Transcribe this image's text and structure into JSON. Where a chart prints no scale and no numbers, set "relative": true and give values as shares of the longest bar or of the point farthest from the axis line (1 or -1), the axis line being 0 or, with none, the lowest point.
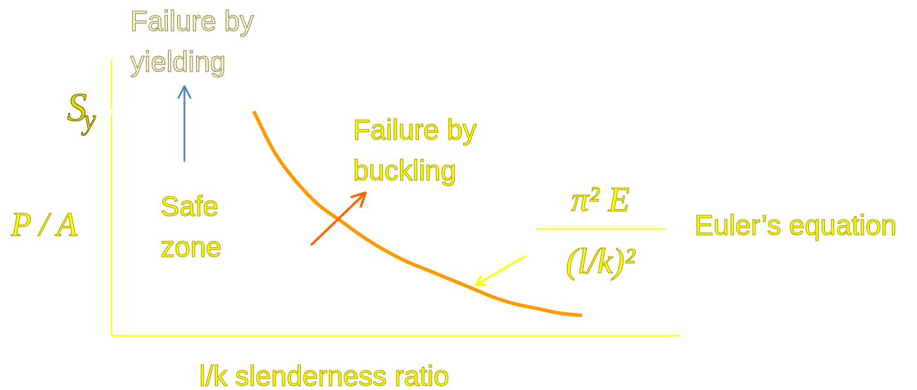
{
  "chart_data": {
    "type": "line",
    "relative": true,
    "xlabel": "l/k slenderness ratio",
    "ylabel": "P / A",
    "categories": [
      null,
      null,
      null,
      null,
      null,
      null,
      null,
      null,
      null,
      null,
      null,
      null,
      null,
      null,
      null,
      null,
      null,
      null,
      null,
      null,
      null,
      null,
      null,
      null,
      null,
      null
    ],
    "series": [
      {
        "color": "#ff9900",
        "values": [
          null,
          null,
          null,
          null,
          null,
          null,
          1,
          0.81,
          0.68,
          0.58,
          0.51,
          0.44,
          0.38,
          0.33,
          0.29,
          0.25,
          0.21,
          0.17,
          0.14,
          0.12,
          0.1,
          0.09,
          null,
          null,
          null,
          null
        ]
      }
    ],
    "annotations": [
      "Failure by yielding",
      "S$_{y}$",
      "Failure by buckling",
      "Safe zone",
      "π² E",
      "(l/k)²",
      "Euler’s equation"
    ]
  }
}
